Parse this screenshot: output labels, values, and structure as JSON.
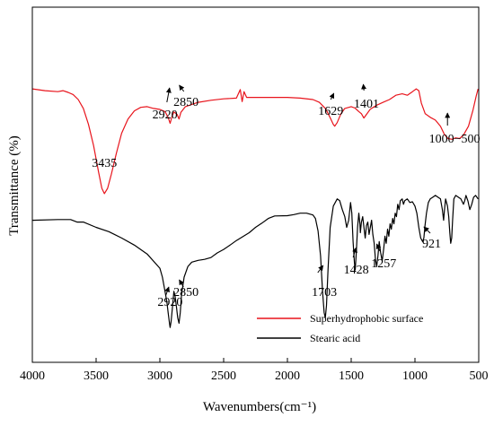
{
  "chart_data": {
    "type": "line",
    "title": "",
    "xlabel": "Wavenumbers(cm⁻¹)",
    "ylabel": "Transmittance (%)",
    "xlim": [
      4000,
      500
    ],
    "x_reversed": true,
    "xticks": [
      4000,
      3500,
      3000,
      2500,
      2000,
      1500,
      1000,
      500
    ],
    "y_tick_labels": false,
    "grid": false,
    "legend_position": "bottom-right",
    "series": [
      {
        "name": "Superhydrophobic surface",
        "color": "#e8141c",
        "points": [
          [
            4000,
            77.0
          ],
          [
            3900,
            76.5
          ],
          [
            3800,
            76.2
          ],
          [
            3760,
            76.5
          ],
          [
            3720,
            76.0
          ],
          [
            3680,
            75.4
          ],
          [
            3640,
            74.0
          ],
          [
            3600,
            71.5
          ],
          [
            3560,
            67.0
          ],
          [
            3520,
            61.0
          ],
          [
            3480,
            53.5
          ],
          [
            3455,
            49.0
          ],
          [
            3435,
            47.5
          ],
          [
            3410,
            49.0
          ],
          [
            3380,
            53.0
          ],
          [
            3340,
            59.0
          ],
          [
            3300,
            64.5
          ],
          [
            3250,
            68.5
          ],
          [
            3200,
            70.8
          ],
          [
            3150,
            71.8
          ],
          [
            3100,
            72.0
          ],
          [
            3050,
            71.5
          ],
          [
            3000,
            71.2
          ],
          [
            2960,
            70.6
          ],
          [
            2935,
            69.0
          ],
          [
            2920,
            67.3
          ],
          [
            2905,
            69.2
          ],
          [
            2890,
            70.5
          ],
          [
            2865,
            69.8
          ],
          [
            2850,
            68.5
          ],
          [
            2835,
            70.4
          ],
          [
            2800,
            72.0
          ],
          [
            2700,
            73.2
          ],
          [
            2600,
            73.8
          ],
          [
            2500,
            74.2
          ],
          [
            2400,
            74.4
          ],
          [
            2370,
            76.8
          ],
          [
            2355,
            73.4
          ],
          [
            2340,
            76.2
          ],
          [
            2320,
            74.6
          ],
          [
            2200,
            74.6
          ],
          [
            2000,
            74.6
          ],
          [
            1900,
            74.4
          ],
          [
            1800,
            74.0
          ],
          [
            1750,
            73.2
          ],
          [
            1700,
            71.4
          ],
          [
            1660,
            68.5
          ],
          [
            1640,
            67.0
          ],
          [
            1629,
            66.5
          ],
          [
            1610,
            67.5
          ],
          [
            1580,
            70.0
          ],
          [
            1550,
            71.5
          ],
          [
            1500,
            72.0
          ],
          [
            1470,
            71.6
          ],
          [
            1440,
            70.6
          ],
          [
            1420,
            70.0
          ],
          [
            1401,
            68.8
          ],
          [
            1380,
            69.8
          ],
          [
            1350,
            71.3
          ],
          [
            1300,
            72.4
          ],
          [
            1250,
            73.2
          ],
          [
            1200,
            74.0
          ],
          [
            1150,
            75.2
          ],
          [
            1100,
            75.6
          ],
          [
            1060,
            75.2
          ],
          [
            1020,
            76.2
          ],
          [
            990,
            77.0
          ],
          [
            970,
            76.5
          ],
          [
            950,
            73.0
          ],
          [
            920,
            70.0
          ],
          [
            880,
            69.0
          ],
          [
            840,
            68.2
          ],
          [
            800,
            66.5
          ],
          [
            770,
            64.2
          ],
          [
            740,
            63.0
          ],
          [
            710,
            62.8
          ],
          [
            680,
            63.2
          ],
          [
            650,
            63.0
          ],
          [
            620,
            64.0
          ],
          [
            580,
            66.5
          ],
          [
            545,
            71.0
          ],
          [
            520,
            75.0
          ],
          [
            505,
            77.0
          ]
        ]
      },
      {
        "name": "Stearic acid",
        "color": "#000000",
        "points": [
          [
            4000,
            40.0
          ],
          [
            3800,
            40.2
          ],
          [
            3700,
            40.2
          ],
          [
            3650,
            39.5
          ],
          [
            3600,
            39.5
          ],
          [
            3500,
            38.0
          ],
          [
            3400,
            36.8
          ],
          [
            3300,
            35.0
          ],
          [
            3200,
            33.0
          ],
          [
            3100,
            30.5
          ],
          [
            3000,
            26.5
          ],
          [
            2980,
            24.0
          ],
          [
            2960,
            20.0
          ],
          [
            2945,
            17.0
          ],
          [
            2935,
            14.0
          ],
          [
            2925,
            11.0
          ],
          [
            2920,
            9.8
          ],
          [
            2912,
            11.5
          ],
          [
            2900,
            16.0
          ],
          [
            2890,
            20.0
          ],
          [
            2880,
            18.5
          ],
          [
            2870,
            15.5
          ],
          [
            2860,
            12.5
          ],
          [
            2850,
            11.0
          ],
          [
            2840,
            14.0
          ],
          [
            2830,
            19.0
          ],
          [
            2810,
            24.0
          ],
          [
            2780,
            27.0
          ],
          [
            2750,
            28.2
          ],
          [
            2700,
            28.7
          ],
          [
            2650,
            29.0
          ],
          [
            2600,
            29.5
          ],
          [
            2550,
            30.8
          ],
          [
            2500,
            31.8
          ],
          [
            2450,
            33.0
          ],
          [
            2400,
            34.3
          ],
          [
            2300,
            36.5
          ],
          [
            2250,
            38.0
          ],
          [
            2200,
            39.2
          ],
          [
            2150,
            40.5
          ],
          [
            2100,
            41.2
          ],
          [
            2000,
            41.3
          ],
          [
            1950,
            41.6
          ],
          [
            1900,
            42.0
          ],
          [
            1850,
            42.0
          ],
          [
            1800,
            41.5
          ],
          [
            1780,
            40.5
          ],
          [
            1760,
            37.0
          ],
          [
            1740,
            30.0
          ],
          [
            1725,
            20.0
          ],
          [
            1712,
            14.0
          ],
          [
            1703,
            12.5
          ],
          [
            1694,
            16.0
          ],
          [
            1682,
            26.0
          ],
          [
            1665,
            38.0
          ],
          [
            1640,
            44.0
          ],
          [
            1610,
            46.0
          ],
          [
            1590,
            45.5
          ],
          [
            1570,
            43.0
          ],
          [
            1550,
            41.0
          ],
          [
            1535,
            38.0
          ],
          [
            1520,
            40.0
          ],
          [
            1505,
            45.0
          ],
          [
            1495,
            42.0
          ],
          [
            1485,
            34.0
          ],
          [
            1475,
            28.0
          ],
          [
            1468,
            26.0
          ],
          [
            1460,
            31.0
          ],
          [
            1450,
            38.0
          ],
          [
            1440,
            42.0
          ],
          [
            1432,
            39.0
          ],
          [
            1428,
            36.5
          ],
          [
            1420,
            39.5
          ],
          [
            1410,
            41.0
          ],
          [
            1400,
            38.0
          ],
          [
            1390,
            35.0
          ],
          [
            1380,
            38.5
          ],
          [
            1370,
            39.5
          ],
          [
            1360,
            36.0
          ],
          [
            1350,
            38.0
          ],
          [
            1340,
            40.0
          ],
          [
            1330,
            36.0
          ],
          [
            1320,
            33.5
          ],
          [
            1310,
            29.0
          ],
          [
            1300,
            27.0
          ],
          [
            1290,
            30.0
          ],
          [
            1280,
            34.0
          ],
          [
            1270,
            31.0
          ],
          [
            1257,
            28.5
          ],
          [
            1245,
            32.0
          ],
          [
            1235,
            35.5
          ],
          [
            1225,
            33.5
          ],
          [
            1215,
            37.5
          ],
          [
            1205,
            35.5
          ],
          [
            1195,
            39.0
          ],
          [
            1185,
            37.5
          ],
          [
            1175,
            40.5
          ],
          [
            1165,
            39.0
          ],
          [
            1155,
            42.0
          ],
          [
            1145,
            41.0
          ],
          [
            1135,
            44.5
          ],
          [
            1125,
            43.0
          ],
          [
            1115,
            45.5
          ],
          [
            1100,
            46.0
          ],
          [
            1090,
            44.5
          ],
          [
            1080,
            45.5
          ],
          [
            1060,
            46.0
          ],
          [
            1040,
            45.0
          ],
          [
            1020,
            45.2
          ],
          [
            1000,
            44.0
          ],
          [
            985,
            42.0
          ],
          [
            970,
            38.0
          ],
          [
            955,
            35.0
          ],
          [
            940,
            34.0
          ],
          [
            930,
            35.0
          ],
          [
            921,
            38.5
          ],
          [
            910,
            42.0
          ],
          [
            895,
            45.0
          ],
          [
            880,
            46.0
          ],
          [
            860,
            46.5
          ],
          [
            840,
            47.0
          ],
          [
            820,
            46.5
          ],
          [
            800,
            46.0
          ],
          [
            785,
            43.0
          ],
          [
            775,
            40.0
          ],
          [
            768,
            43.0
          ],
          [
            760,
            46.0
          ],
          [
            745,
            44.0
          ],
          [
            735,
            41.0
          ],
          [
            727,
            36.5
          ],
          [
            720,
            33.5
          ],
          [
            712,
            35.0
          ],
          [
            705,
            40.0
          ],
          [
            695,
            46.0
          ],
          [
            680,
            47.0
          ],
          [
            660,
            46.5
          ],
          [
            640,
            46.0
          ],
          [
            620,
            44.5
          ],
          [
            610,
            45.5
          ],
          [
            600,
            47.0
          ],
          [
            585,
            45.5
          ],
          [
            570,
            43.0
          ],
          [
            555,
            44.5
          ],
          [
            540,
            46.5
          ],
          [
            525,
            47.0
          ],
          [
            505,
            46.0
          ]
        ]
      }
    ],
    "annotations": [
      {
        "text": "3435",
        "x": 3435
      },
      {
        "text": "2920",
        "x": 2920
      },
      {
        "text": "2850",
        "x": 2850
      },
      {
        "text": "1629",
        "x": 1629
      },
      {
        "text": "1401",
        "x": 1401
      },
      {
        "text": "1000−500",
        "x": 740
      },
      {
        "text": "2920",
        "x": 2920
      },
      {
        "text": "2850",
        "x": 2850
      },
      {
        "text": "1703",
        "x": 1703
      },
      {
        "text": "1428",
        "x": 1428
      },
      {
        "text": "1257",
        "x": 1257
      },
      {
        "text": "921",
        "x": 921
      }
    ]
  }
}
